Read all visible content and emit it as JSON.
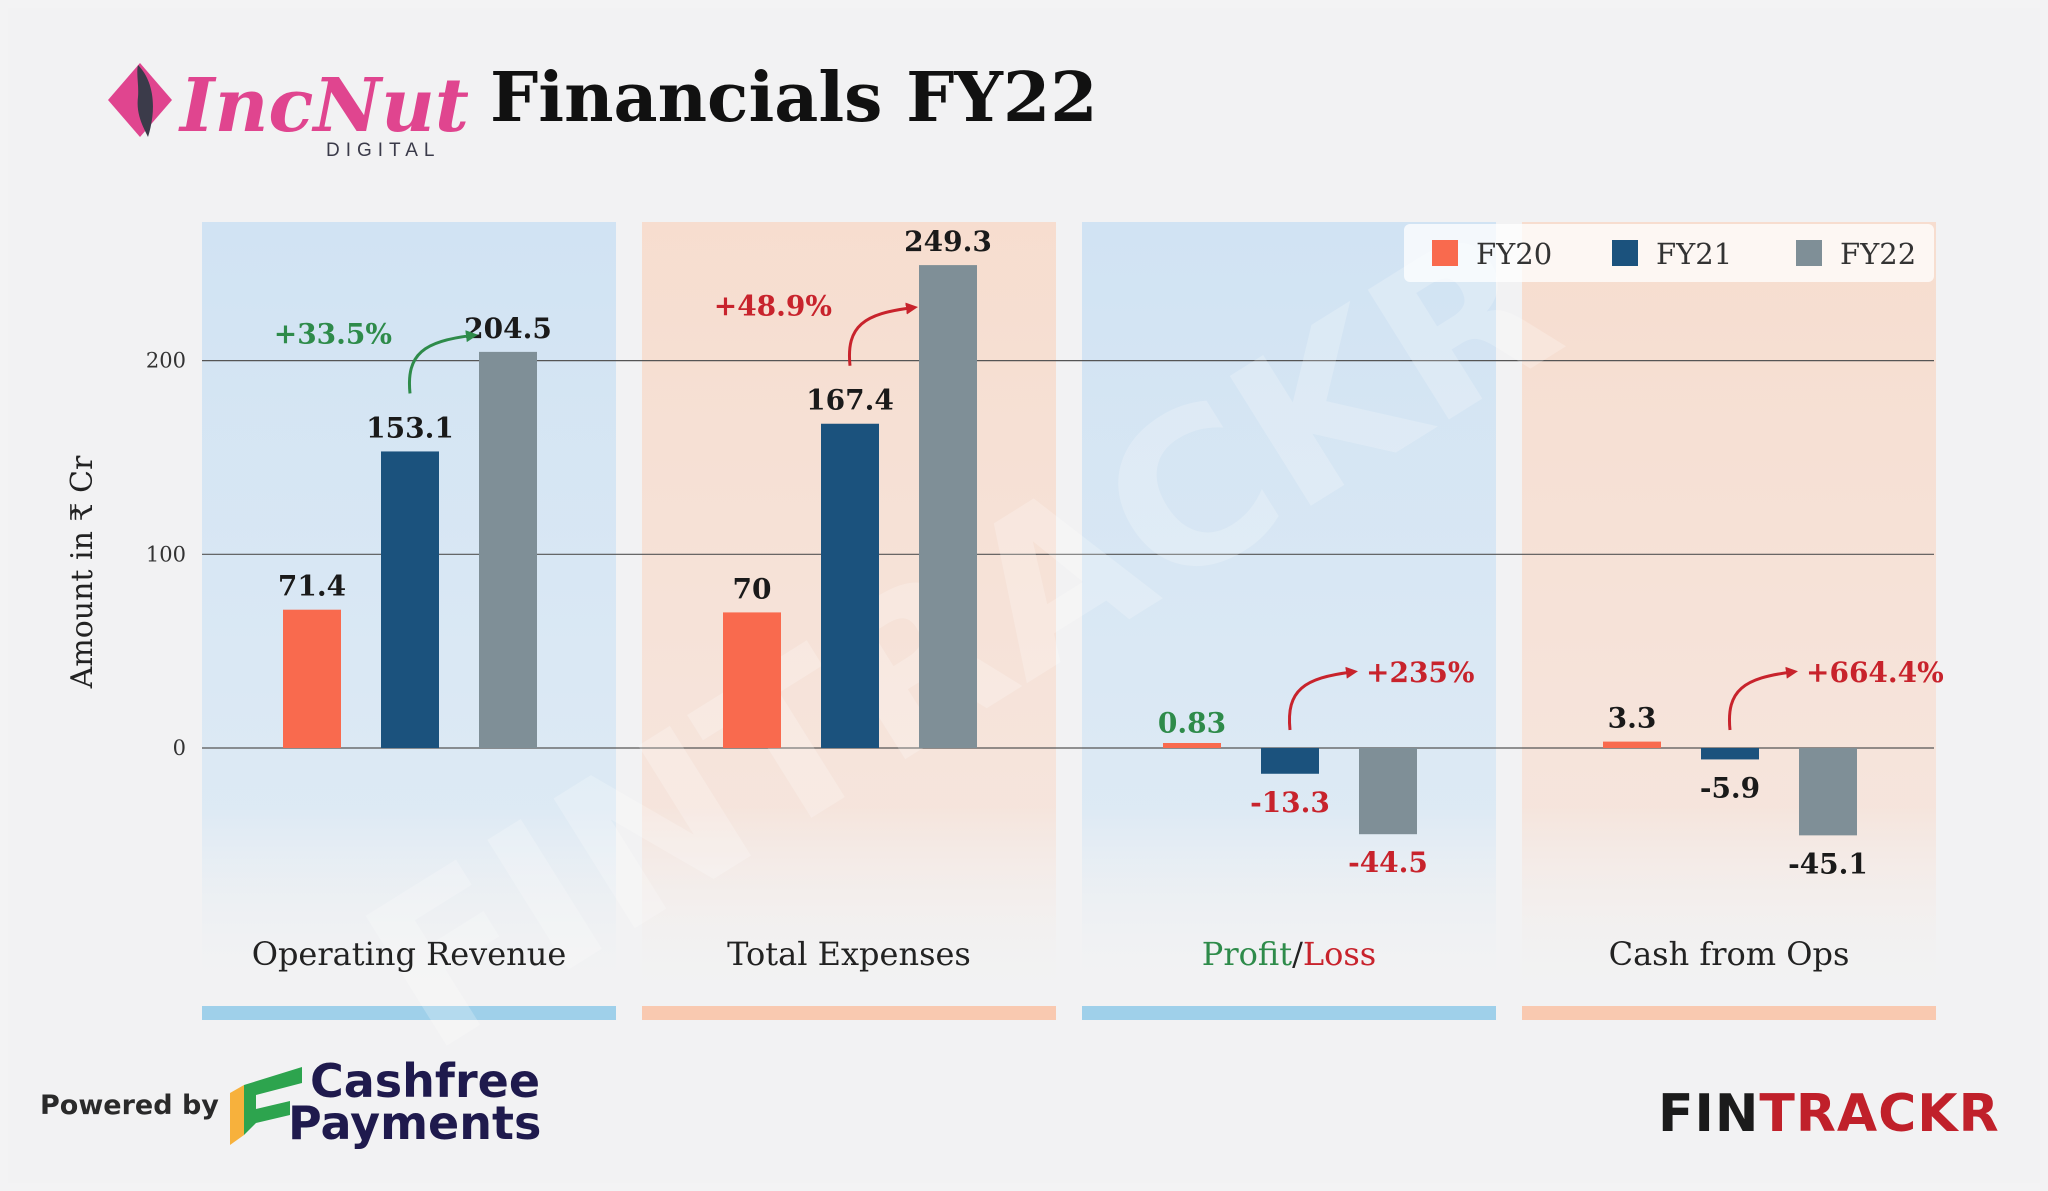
{
  "header": {
    "title": "Financials FY22",
    "logo_name": "IncNut",
    "logo_sub": "DIGITAL"
  },
  "footer": {
    "powered_by": "Powered by",
    "sponsor_line1": "Cashfree",
    "sponsor_line2": "Payments",
    "brand_part1": "FIN",
    "brand_part2": "TRACKR"
  },
  "watermark": "FINTRACKR",
  "colors": {
    "FY20": "#f96a4e",
    "FY21": "#1b527d",
    "FY22": "#7f8f97",
    "positive": "#2e8b4a",
    "negative": "#c8232c",
    "panel_blue": "#cfe2f3",
    "panel_orange": "#f7dccd",
    "bar_blue": "#9fd0ea",
    "bar_orange": "#f9c9b0"
  },
  "chart_data": {
    "type": "bar",
    "ylabel": "Amount in ₹ Cr",
    "yticks": [
      0,
      100,
      200
    ],
    "ylim": [
      -90,
      270
    ],
    "legend_position": "top-right",
    "series_names": [
      "FY20",
      "FY21",
      "FY22"
    ],
    "groups": [
      {
        "category": "Operating Revenue",
        "panel": "blue",
        "values": [
          71.4,
          153.1,
          204.5
        ],
        "labels": [
          "71.4",
          "153.1",
          "204.5"
        ],
        "label_colors": [
          "#1a1a1a",
          "#1a1a1a",
          "#1a1a1a"
        ],
        "growth": "+33.5%",
        "growth_color": "#2e8b4a",
        "growth_from": 1
      },
      {
        "category": "Total Expenses",
        "panel": "orange",
        "values": [
          70,
          167.4,
          249.3
        ],
        "labels": [
          "70",
          "167.4",
          "249.3"
        ],
        "label_colors": [
          "#1a1a1a",
          "#1a1a1a",
          "#1a1a1a"
        ],
        "growth": "+48.9%",
        "growth_color": "#c8232c",
        "growth_from": 1
      },
      {
        "category_parts": [
          "Profit",
          "/",
          "Loss"
        ],
        "category_part_colors": [
          "#2e8b4a",
          "#222222",
          "#c8232c"
        ],
        "panel": "blue",
        "values": [
          0.83,
          -13.3,
          -44.5
        ],
        "labels": [
          "0.83",
          "-13.3",
          "-44.5"
        ],
        "label_colors": [
          "#2e8b4a",
          "#c8232c",
          "#c8232c"
        ],
        "growth": "+235%",
        "growth_color": "#c8232c",
        "growth_from": 1
      },
      {
        "category": "Cash from Ops",
        "panel": "orange",
        "values": [
          3.3,
          -5.9,
          -45.1
        ],
        "labels": [
          "3.3",
          "-5.9",
          "-45.1"
        ],
        "label_colors": [
          "#1a1a1a",
          "#1a1a1a",
          "#1a1a1a"
        ],
        "growth": "+664.4%",
        "growth_color": "#c8232c",
        "growth_from": 1
      }
    ]
  }
}
